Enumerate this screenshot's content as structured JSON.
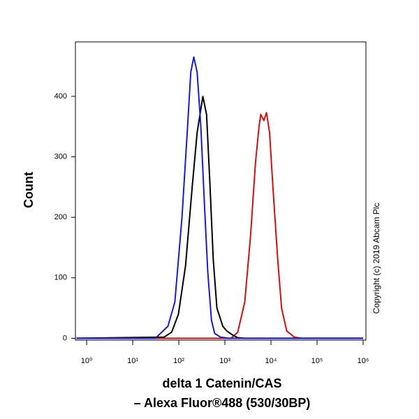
{
  "chart_data": {
    "type": "line",
    "ylabel": "Count",
    "xlabel": [
      "delta 1 Catenin/CAS",
      "– Alexa Fluor®488 (530/30BP)"
    ],
    "annotation": "Copyright (c) 2019 Abcam Plc",
    "xscale": "log",
    "xlim": [
      0.57,
      1150000
    ],
    "ylim": [
      -3,
      490
    ],
    "xticks": [
      {
        "value": 1,
        "label": "10⁰"
      },
      {
        "value": 10,
        "label": "10¹"
      },
      {
        "value": 100,
        "label": "10²"
      },
      {
        "value": 1000,
        "label": "10³"
      },
      {
        "value": 10000,
        "label": "10⁴"
      },
      {
        "value": 100000,
        "label": "10⁵"
      },
      {
        "value": 1000000,
        "label": "10⁶"
      }
    ],
    "yticks": [
      0,
      100,
      200,
      300,
      400
    ],
    "series": [
      {
        "color": "#d01010",
        "x": [
          0.6,
          1350,
          1900,
          2700,
          3600,
          4600,
          5500,
          6000,
          7000,
          8000,
          9300,
          11000,
          14000,
          17000,
          22000,
          32000,
          45000,
          1000000
        ],
        "values": [
          0,
          0,
          10,
          60,
          170,
          290,
          350,
          370,
          360,
          373,
          340,
          250,
          130,
          50,
          12,
          2,
          0,
          0
        ]
      },
      {
        "color": "#000000",
        "x": [
          0.6,
          48,
          70,
          98,
          140,
          195,
          250,
          333,
          400,
          470,
          560,
          670,
          900,
          1100,
          1500,
          1900,
          2700,
          1000000
        ],
        "values": [
          0,
          2,
          10,
          40,
          120,
          250,
          340,
          400,
          370,
          260,
          130,
          50,
          20,
          12,
          5,
          1,
          0,
          0
        ]
      },
      {
        "color": "#1a1ad0",
        "x": [
          0.6,
          31,
          58,
          82,
          117,
          155,
          182,
          211,
          250,
          300,
          360,
          425,
          510,
          600,
          800,
          1200,
          1000000
        ],
        "values": [
          0,
          0,
          20,
          60,
          200,
          350,
          440,
          465,
          440,
          350,
          220,
          110,
          30,
          8,
          2,
          0,
          0
        ]
      }
    ]
  }
}
